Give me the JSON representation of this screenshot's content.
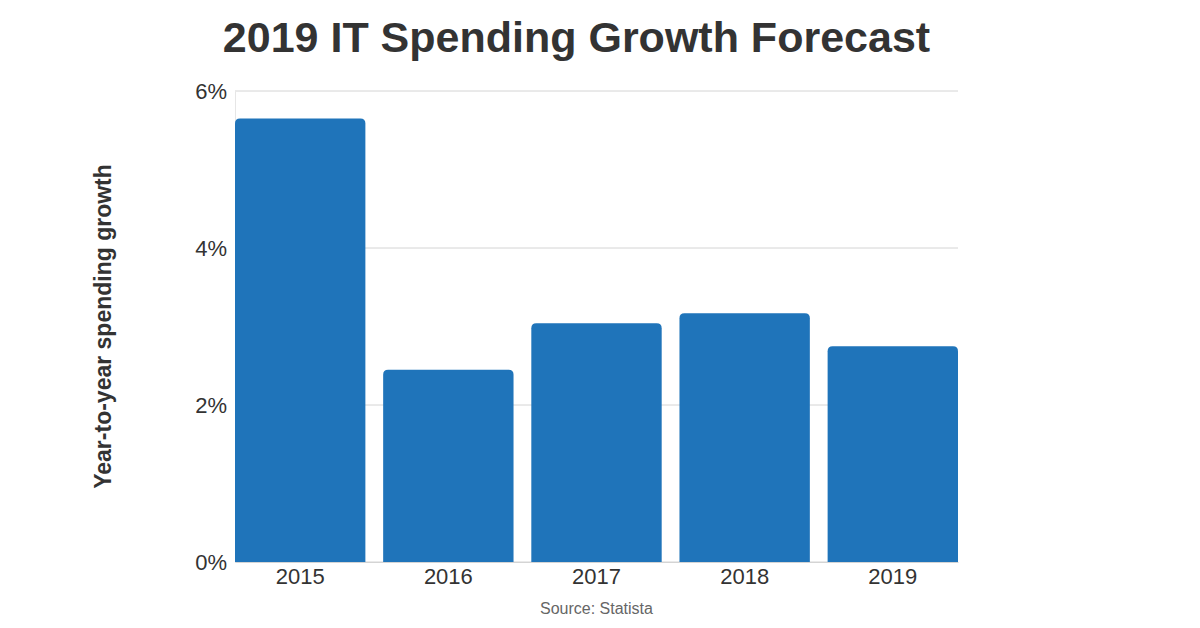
{
  "chart_data": {
    "type": "bar",
    "title": "2019 IT Spending Growth Forecast",
    "y_label": "Year-to-year spending growth",
    "source": "Source: Statista",
    "categories": [
      "2015",
      "2016",
      "2017",
      "2018",
      "2019"
    ],
    "values": [
      5.65,
      2.45,
      3.04,
      3.17,
      2.75
    ],
    "color": "#1f74ba",
    "ylim": [
      0,
      6
    ],
    "yticks": [
      {
        "value": 0,
        "label": "0%"
      },
      {
        "value": 2,
        "label": "2%"
      },
      {
        "value": 4,
        "label": "4%"
      },
      {
        "value": 6,
        "label": "6%"
      }
    ],
    "grid": true
  }
}
